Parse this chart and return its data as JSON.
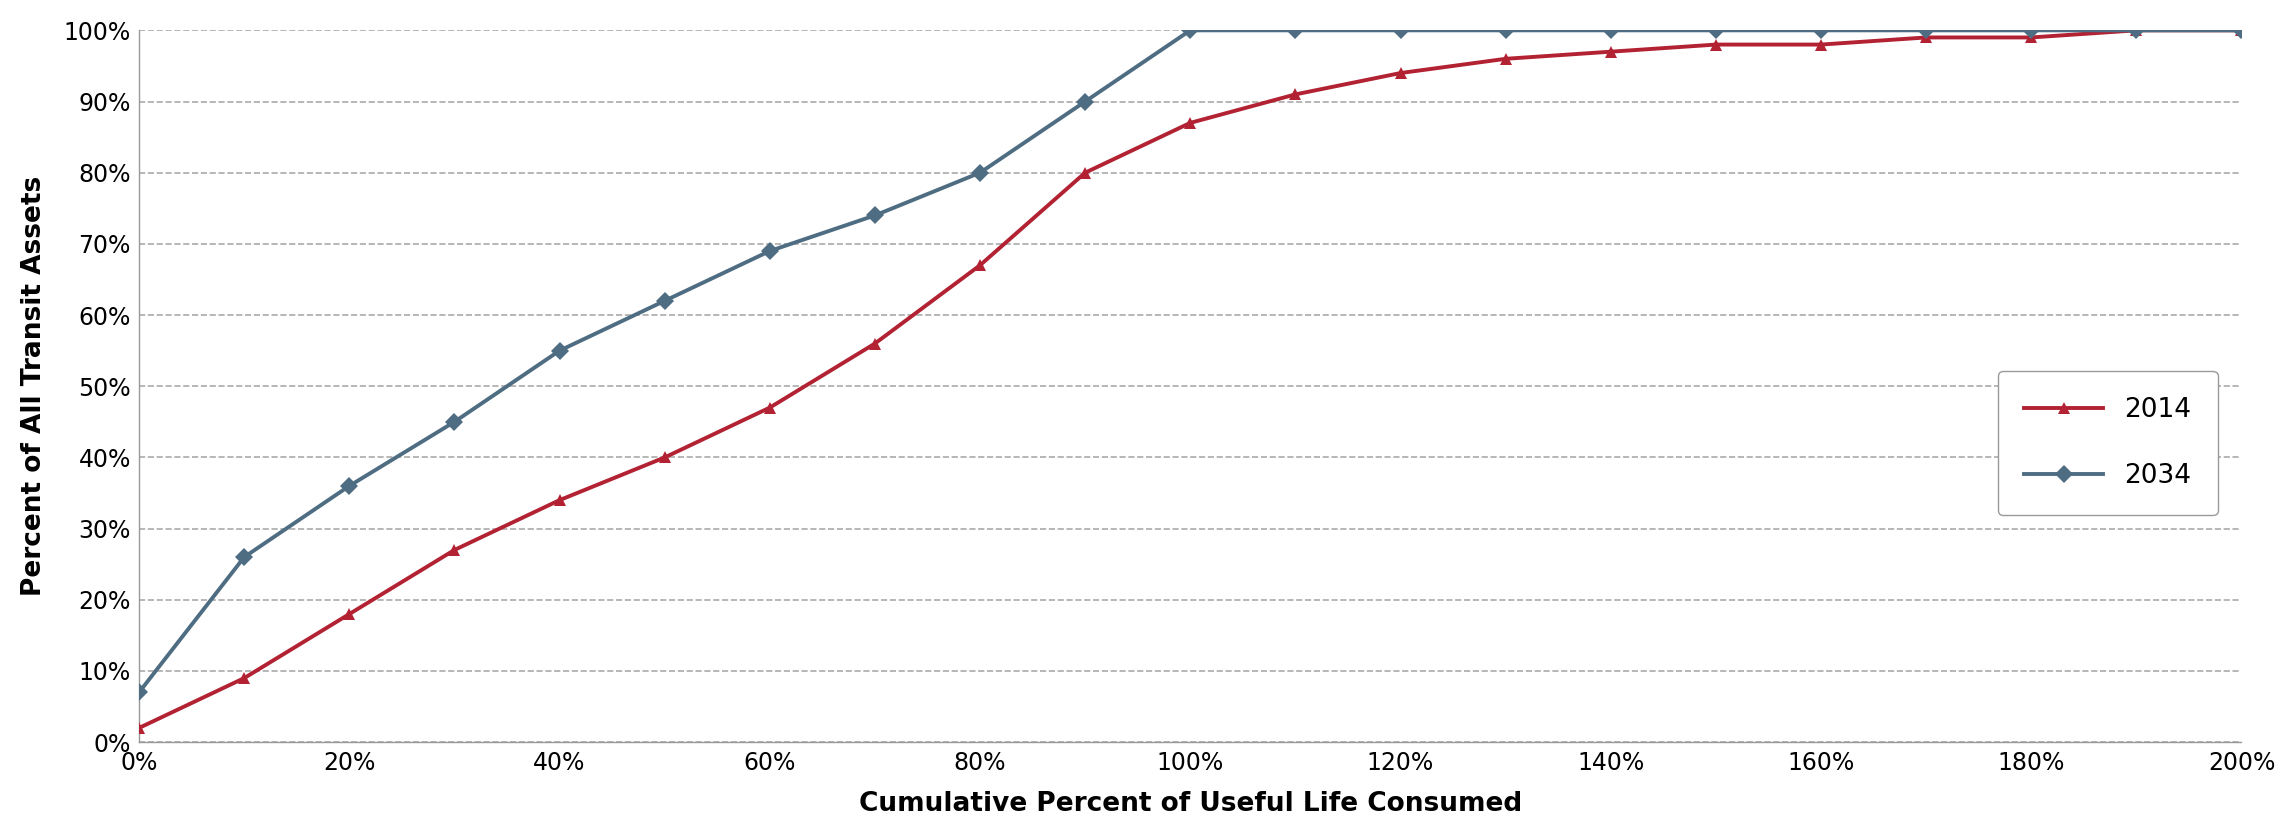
{
  "x_2014": [
    0,
    10,
    20,
    30,
    40,
    50,
    60,
    70,
    80,
    90,
    100,
    110,
    120,
    130,
    140,
    150,
    160,
    170,
    180,
    190,
    200
  ],
  "y_2014": [
    2,
    9,
    18,
    27,
    34,
    40,
    47,
    56,
    67,
    80,
    87,
    91,
    94,
    96,
    97,
    98,
    98,
    99,
    99,
    100,
    100
  ],
  "x_2034": [
    0,
    10,
    20,
    30,
    40,
    50,
    60,
    70,
    80,
    90,
    100,
    110,
    120,
    130,
    140,
    150,
    160,
    170,
    180,
    190,
    200
  ],
  "y_2034": [
    7,
    26,
    36,
    45,
    55,
    62,
    69,
    74,
    80,
    90,
    100,
    100,
    100,
    100,
    100,
    100,
    100,
    100,
    100,
    100,
    100
  ],
  "color_2014": "#b22232",
  "color_2034": "#4f6d82",
  "xlabel": "Cumulative Percent of Useful Life Consumed",
  "ylabel": "Percent of All Transit Assets",
  "label_2014": "2014",
  "label_2034": "2034",
  "xlim": [
    0,
    200
  ],
  "ylim": [
    0,
    100
  ],
  "xtick_values": [
    0,
    20,
    40,
    60,
    80,
    100,
    120,
    140,
    160,
    180,
    200
  ],
  "ytick_values": [
    0,
    10,
    20,
    30,
    40,
    50,
    60,
    70,
    80,
    90,
    100
  ],
  "background_color": "#ffffff",
  "plot_bg_color": "#f0f0f0",
  "grid_color": "#aaaaaa",
  "spine_color": "#999999"
}
